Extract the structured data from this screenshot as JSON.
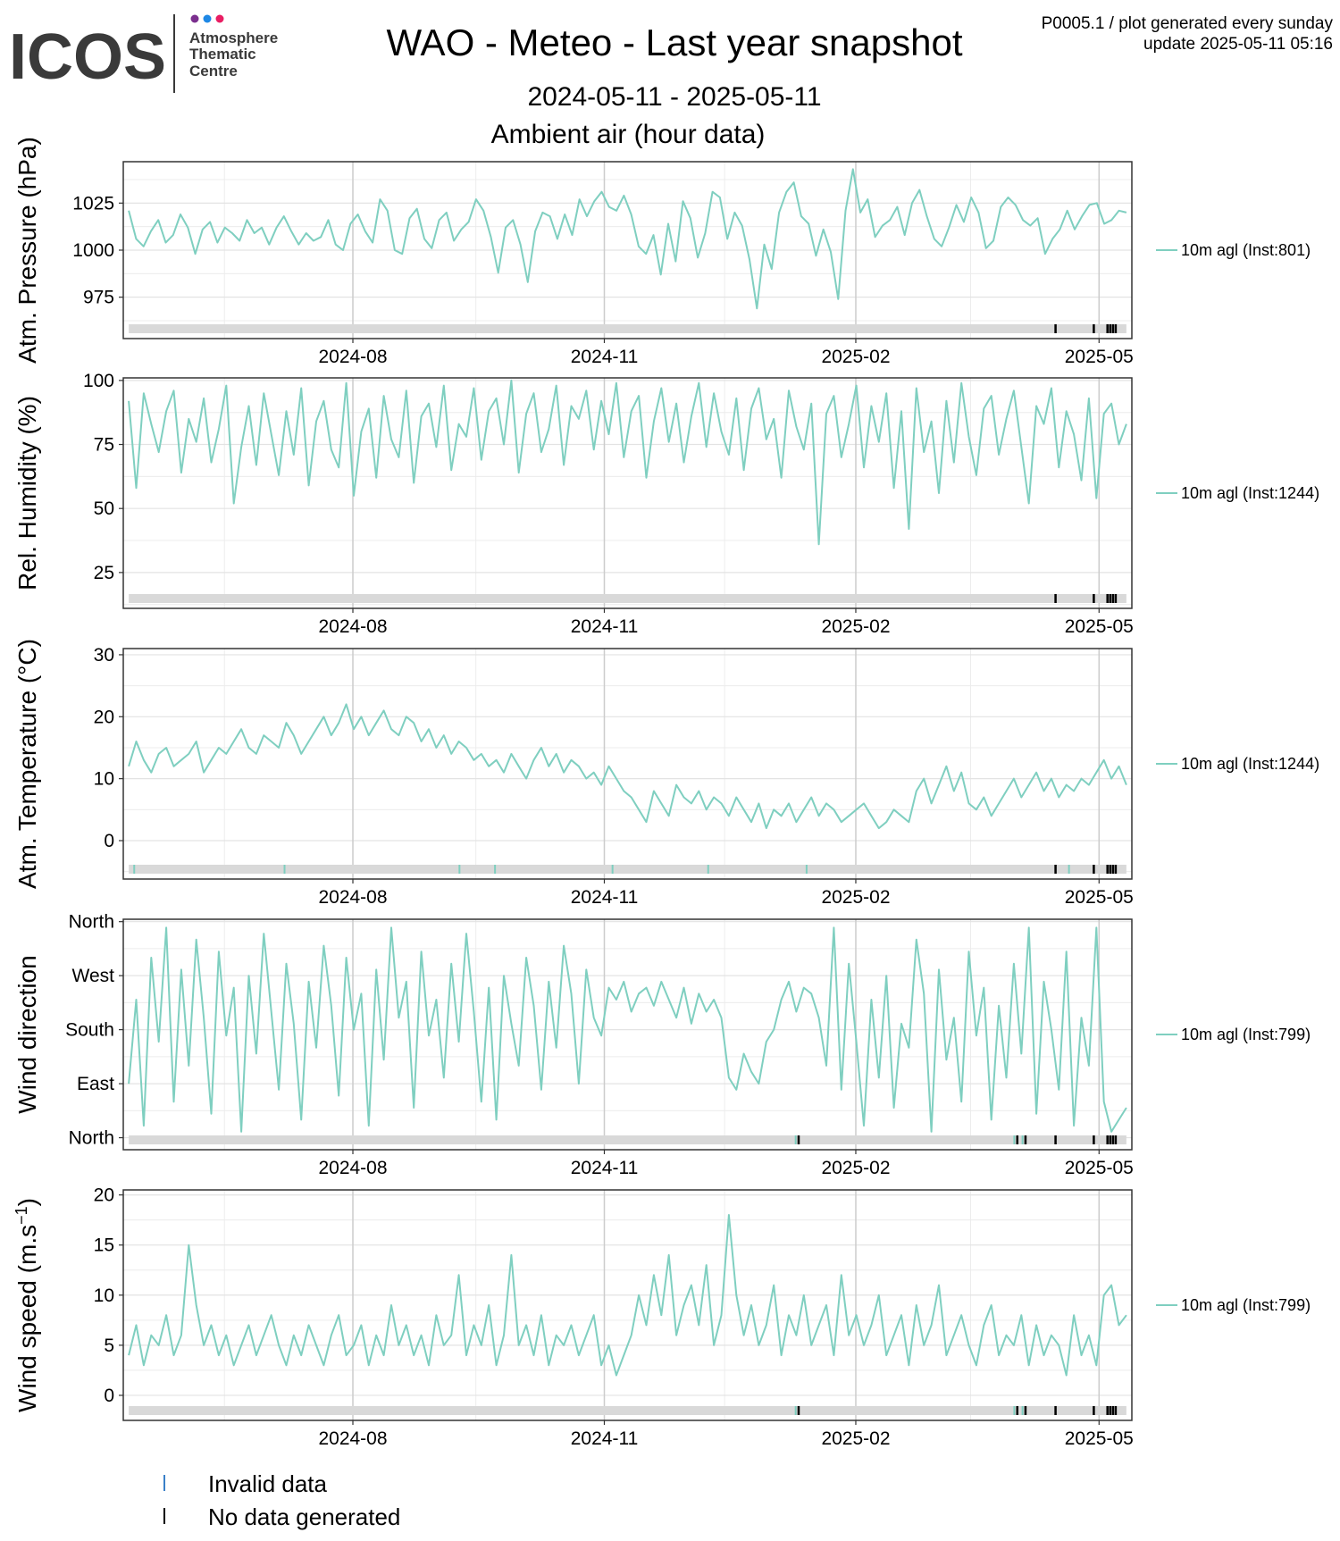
{
  "header": {
    "logo_text": "ICOS",
    "logo_sub": [
      "Atmosphere",
      "Thematic",
      "Centre"
    ],
    "title": "WAO - Meteo - Last year snapshot",
    "date_range": "2024-05-11 - 2025-05-11",
    "subtitle": "Ambient air (hour data)",
    "meta_line1": "P0005.1 / plot generated every sunday",
    "meta_line2": "update  2025-05-11 05:16"
  },
  "legend_bottom": {
    "invalid_label": "Invalid data",
    "nodata_label": "No data generated"
  },
  "colors": {
    "series": "#7fcfc0",
    "invalid": "#3a80c8",
    "nodata": "#000000",
    "flag_bar": "#d9d9d9",
    "grid_major": "#cccccc",
    "grid_minor": "#ececec",
    "logo_dots": [
      "#7b2f8e",
      "#1e88e5",
      "#e91e63"
    ]
  },
  "chart_data": [
    {
      "type": "line",
      "ylabel": "Atm. Pressure (hPa)",
      "series": [
        {
          "name": "10m agl (Inst:801)",
          "values": [
            1021,
            1006,
            1002,
            1010,
            1016,
            1004,
            1008,
            1019,
            1012,
            998,
            1011,
            1015,
            1004,
            1012,
            1009,
            1005,
            1016,
            1009,
            1012,
            1003,
            1012,
            1018,
            1010,
            1003,
            1009,
            1005,
            1007,
            1016,
            1003,
            1000,
            1014,
            1019,
            1010,
            1004,
            1027,
            1021,
            1000,
            998,
            1017,
            1022,
            1006,
            1001,
            1016,
            1020,
            1005,
            1011,
            1015,
            1027,
            1021,
            1007,
            988,
            1012,
            1016,
            1003,
            983,
            1010,
            1020,
            1018,
            1006,
            1019,
            1008,
            1027,
            1018,
            1026,
            1031,
            1023,
            1021,
            1029,
            1019,
            1002,
            998,
            1008,
            987,
            1014,
            994,
            1026,
            1017,
            996,
            1009,
            1031,
            1028,
            1006,
            1020,
            1013,
            995,
            969,
            1003,
            990,
            1020,
            1031,
            1036,
            1018,
            1014,
            997,
            1011,
            999,
            974,
            1021,
            1043,
            1020,
            1027,
            1007,
            1013,
            1016,
            1023,
            1008,
            1025,
            1032,
            1018,
            1006,
            1002,
            1012,
            1024,
            1015,
            1028,
            1020,
            1001,
            1005,
            1023,
            1028,
            1024,
            1016,
            1013,
            1017,
            998,
            1006,
            1011,
            1021,
            1011,
            1018,
            1024,
            1025,
            1014,
            1016,
            1021,
            1020
          ]
        }
      ],
      "flags": {
        "invalid": [],
        "nodata": [
          "2025-04-15",
          "2025-04-29",
          "2025-05-04",
          "2025-05-05",
          "2025-05-06",
          "2025-05-07"
        ]
      },
      "yticks": [
        975,
        1000,
        1025
      ],
      "yminor": [
        962.5,
        987.5,
        1012.5,
        1037.5
      ],
      "ylim": [
        953,
        1047
      ]
    },
    {
      "type": "line",
      "ylabel": "Rel. Humidity (%)",
      "series": [
        {
          "name": "10m agl (Inst:1244)",
          "values": [
            92,
            58,
            95,
            83,
            72,
            88,
            96,
            64,
            85,
            76,
            93,
            68,
            81,
            98,
            52,
            74,
            90,
            67,
            95,
            79,
            63,
            88,
            71,
            97,
            59,
            84,
            92,
            73,
            66,
            99,
            55,
            80,
            89,
            62,
            94,
            77,
            70,
            96,
            60,
            86,
            91,
            74,
            98,
            65,
            83,
            78,
            97,
            69,
            88,
            93,
            75,
            100,
            64,
            87,
            95,
            72,
            81,
            98,
            67,
            90,
            85,
            96,
            73,
            92,
            79,
            99,
            70,
            88,
            94,
            62,
            84,
            97,
            76,
            91,
            68,
            86,
            99,
            74,
            95,
            80,
            71,
            93,
            65,
            89,
            97,
            77,
            85,
            62,
            96,
            82,
            73,
            91,
            36,
            87,
            94,
            70,
            83,
            98,
            66,
            90,
            76,
            95,
            58,
            88,
            42,
            97,
            72,
            84,
            56,
            92,
            68,
            99,
            78,
            63,
            89,
            94,
            71,
            85,
            96,
            74,
            52,
            90,
            83,
            97,
            66,
            88,
            79,
            61,
            93,
            54,
            87,
            91,
            75,
            83
          ]
        }
      ],
      "flags": {
        "invalid": [],
        "nodata": [
          "2025-04-15",
          "2025-04-29",
          "2025-05-04",
          "2025-05-05",
          "2025-05-06",
          "2025-05-07"
        ]
      },
      "yticks": [
        25,
        50,
        75,
        100
      ],
      "yminor": [
        12.5,
        37.5,
        62.5,
        87.5
      ],
      "ylim": [
        11,
        101
      ]
    },
    {
      "type": "line",
      "ylabel": "Atm. Temperature (°C)",
      "series": [
        {
          "name": "10m agl (Inst:1244)",
          "values": [
            12,
            16,
            13,
            11,
            14,
            15,
            12,
            13,
            14,
            16,
            11,
            13,
            15,
            14,
            16,
            18,
            15,
            14,
            17,
            16,
            15,
            19,
            17,
            14,
            16,
            18,
            20,
            17,
            19,
            22,
            18,
            20,
            17,
            19,
            21,
            18,
            17,
            20,
            19,
            16,
            18,
            15,
            17,
            14,
            16,
            15,
            13,
            14,
            12,
            13,
            11,
            14,
            12,
            10,
            13,
            15,
            12,
            14,
            11,
            13,
            12,
            10,
            11,
            9,
            12,
            10,
            8,
            7,
            5,
            3,
            8,
            6,
            4,
            9,
            7,
            6,
            8,
            5,
            7,
            6,
            4,
            7,
            5,
            3,
            6,
            2,
            5,
            4,
            6,
            3,
            5,
            7,
            4,
            6,
            5,
            3,
            4,
            5,
            6,
            4,
            2,
            3,
            5,
            4,
            3,
            8,
            10,
            6,
            9,
            12,
            8,
            11,
            6,
            5,
            7,
            4,
            6,
            8,
            10,
            7,
            9,
            11,
            8,
            10,
            7,
            9,
            8,
            10,
            9,
            11,
            13,
            10,
            12,
            9
          ]
        }
      ],
      "flags": {
        "invalid": [
          "2024-05-13",
          "2024-07-07",
          "2024-09-09",
          "2024-09-22",
          "2024-11-04",
          "2024-12-09",
          "2025-01-14",
          "2025-04-20"
        ],
        "nodata": [
          "2025-04-15",
          "2025-04-29",
          "2025-05-04",
          "2025-05-05",
          "2025-05-06",
          "2025-05-07"
        ]
      },
      "yticks": [
        0,
        10,
        20,
        30
      ],
      "yminor": [
        -5,
        5,
        15,
        25
      ],
      "ylim": [
        -6.2,
        31
      ]
    },
    {
      "type": "line",
      "ylabel": "Wind direction",
      "series": [
        {
          "name": "10m agl (Inst:799)",
          "values": [
            90,
            230,
            20,
            300,
            160,
            350,
            60,
            280,
            120,
            330,
            200,
            40,
            310,
            170,
            250,
            10,
            270,
            140,
            340,
            210,
            80,
            290,
            190,
            30,
            260,
            150,
            320,
            220,
            70,
            300,
            180,
            240,
            20,
            280,
            130,
            350,
            200,
            260,
            50,
            310,
            170,
            230,
            100,
            290,
            160,
            340,
            210,
            60,
            250,
            30,
            270,
            190,
            120,
            300,
            220,
            80,
            260,
            150,
            320,
            240,
            90,
            280,
            200,
            170,
            250,
            230,
            260,
            210,
            240,
            250,
            220,
            260,
            230,
            200,
            250,
            190,
            240,
            210,
            230,
            200,
            100,
            80,
            140,
            110,
            90,
            160,
            180,
            230,
            260,
            210,
            250,
            240,
            200,
            120,
            350,
            80,
            290,
            160,
            20,
            230,
            100,
            270,
            50,
            190,
            150,
            330,
            240,
            10,
            280,
            130,
            200,
            60,
            310,
            170,
            250,
            30,
            220,
            100,
            290,
            140,
            350,
            40,
            260,
            180,
            80,
            310,
            20,
            200,
            120,
            350,
            60,
            10,
            30,
            50
          ]
        }
      ],
      "flags": {
        "invalid": [
          "2025-01-10",
          "2025-03-31",
          "2025-04-03"
        ],
        "nodata": [
          "2025-01-11",
          "2025-04-01",
          "2025-04-04",
          "2025-04-15",
          "2025-04-29",
          "2025-05-04",
          "2025-05-05",
          "2025-05-06",
          "2025-05-07"
        ]
      },
      "ytick_values": [
        0,
        90,
        180,
        270,
        360
      ],
      "ytick_labels": [
        "North",
        "East",
        "South",
        "West",
        "North"
      ],
      "yminor": [
        45,
        135,
        225,
        315
      ],
      "ylim": [
        -20,
        364
      ]
    },
    {
      "type": "line",
      "ylabel": "Wind speed (m.s",
      "ylabel_sup": "−1",
      "ylabel_end": ")",
      "series": [
        {
          "name": "10m agl (Inst:799)",
          "values": [
            4,
            7,
            3,
            6,
            5,
            8,
            4,
            6,
            15,
            9,
            5,
            7,
            4,
            6,
            3,
            5,
            7,
            4,
            6,
            8,
            5,
            3,
            6,
            4,
            7,
            5,
            3,
            6,
            8,
            4,
            5,
            7,
            3,
            6,
            4,
            9,
            5,
            7,
            4,
            6,
            3,
            8,
            5,
            6,
            12,
            4,
            7,
            5,
            9,
            3,
            6,
            14,
            5,
            7,
            4,
            8,
            3,
            6,
            5,
            7,
            4,
            6,
            8,
            3,
            5,
            2,
            4,
            6,
            10,
            7,
            12,
            8,
            14,
            6,
            9,
            11,
            7,
            13,
            5,
            8,
            18,
            10,
            6,
            9,
            5,
            7,
            11,
            4,
            8,
            6,
            10,
            5,
            7,
            9,
            4,
            12,
            6,
            8,
            5,
            7,
            10,
            4,
            6,
            8,
            3,
            9,
            5,
            7,
            11,
            4,
            6,
            8,
            5,
            3,
            7,
            9,
            4,
            6,
            5,
            8,
            3,
            7,
            4,
            6,
            5,
            2,
            8,
            4,
            6,
            3,
            10,
            11,
            7,
            8
          ]
        }
      ],
      "flags": {
        "invalid": [
          "2025-01-10",
          "2025-03-31",
          "2025-04-03"
        ],
        "nodata": [
          "2025-01-11",
          "2025-04-01",
          "2025-04-04",
          "2025-04-15",
          "2025-04-29",
          "2025-05-04",
          "2025-05-05",
          "2025-05-06",
          "2025-05-07"
        ]
      },
      "yticks": [
        0,
        5,
        10,
        15,
        20
      ],
      "yminor": [
        2.5,
        7.5,
        12.5,
        17.5
      ],
      "ylim": [
        -2.5,
        20.5
      ]
    }
  ],
  "x_axis": {
    "start": "2024-05-11",
    "end": "2025-05-11",
    "xlim": [
      "2024-05-09",
      "2025-05-13"
    ],
    "ticks": [
      {
        "date": "2024-08-01",
        "label": "2024-08"
      },
      {
        "date": "2024-11-01",
        "label": "2024-11"
      },
      {
        "date": "2025-02-01",
        "label": "2025-02"
      },
      {
        "date": "2025-05-01",
        "label": "2025-05"
      }
    ],
    "minor": [
      "2024-06-15",
      "2024-09-15",
      "2024-12-15",
      "2025-03-15"
    ]
  }
}
